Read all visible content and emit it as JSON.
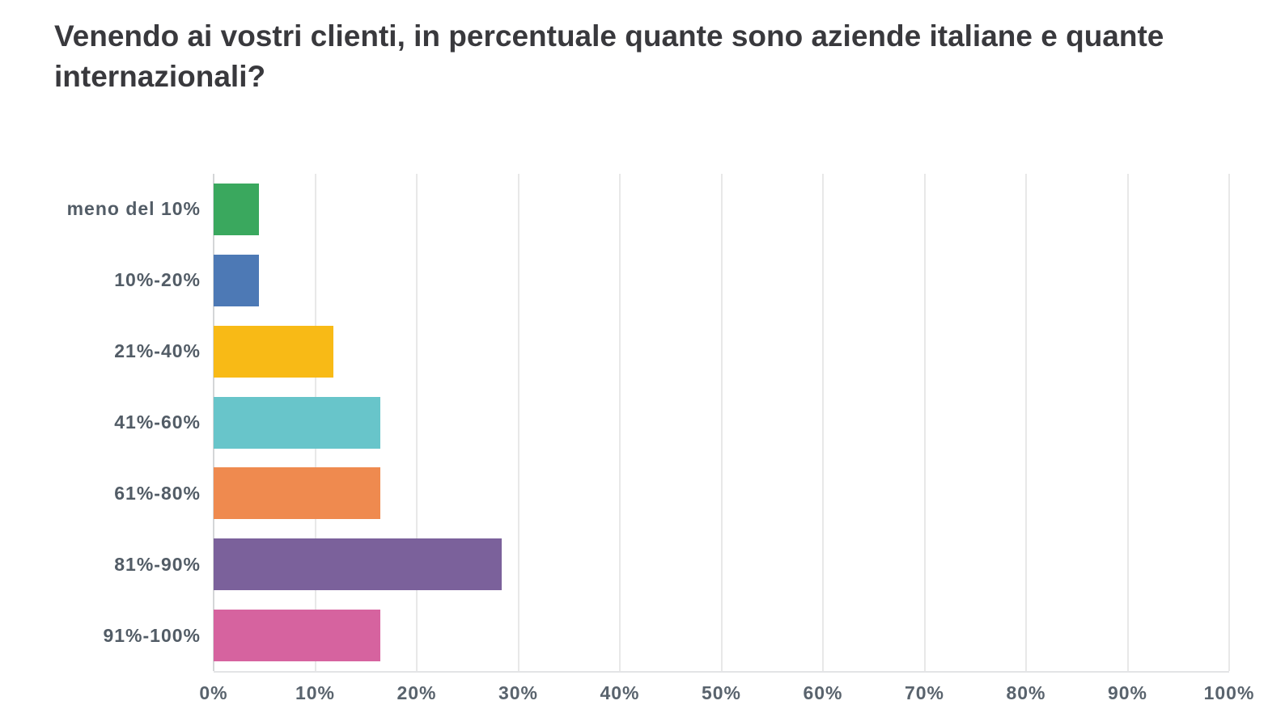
{
  "chart_data": {
    "type": "bar",
    "orientation": "horizontal",
    "title": "Venendo ai vostri clienti, in percentuale quante sono aziende italiane e quante internazionali?",
    "categories": [
      "meno del 10%",
      "10%-20%",
      "21%-40%",
      "41%-60%",
      "61%-80%",
      "81%-90%",
      "91%-100%"
    ],
    "values": [
      4.5,
      4.5,
      11.8,
      16.4,
      16.4,
      28.4,
      16.4
    ],
    "value_unit": "%",
    "bar_colors": [
      "#3aa85e",
      "#4d79b5",
      "#f8ba16",
      "#68c5ca",
      "#ef8a4f",
      "#7b619b",
      "#d6639f"
    ],
    "xlim": [
      0,
      100
    ],
    "x_ticks": [
      "0%",
      "10%",
      "20%",
      "30%",
      "40%",
      "50%",
      "60%",
      "70%",
      "80%",
      "90%",
      "100%"
    ],
    "grid": "vertical-only",
    "legend": "none"
  }
}
